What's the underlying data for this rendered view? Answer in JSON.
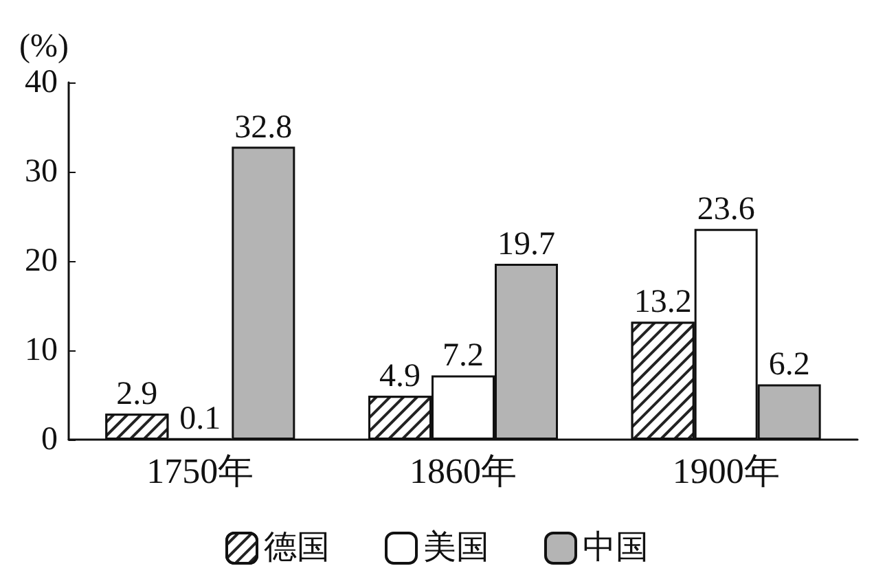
{
  "chart_data": {
    "type": "bar",
    "ylabel": "(%)",
    "categories": [
      "1750年",
      "1860年",
      "1900年"
    ],
    "series": [
      {
        "name": "德国",
        "color": "#222222",
        "values": [
          2.9,
          4.9,
          13.2
        ]
      },
      {
        "name": "美国",
        "color": "#ffffff",
        "values": [
          0.1,
          7.2,
          23.6
        ]
      },
      {
        "name": "中国",
        "color": "#b4b4b4",
        "values": [
          32.8,
          19.7,
          6.2
        ]
      }
    ],
    "ylim": [
      0,
      40
    ],
    "yticks": [
      0,
      10,
      20,
      30,
      40
    ],
    "grid": false,
    "legend": "bottom",
    "data_labels": true
  }
}
